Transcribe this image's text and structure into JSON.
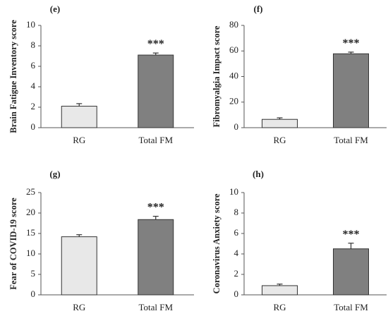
{
  "chart_data": [
    {
      "type": "bar",
      "panel_label": "(e)",
      "ylabel": "Brain Fatigue Inventory score",
      "categories": [
        "RG",
        "Total FM"
      ],
      "values": [
        2.1,
        7.1
      ],
      "errors": [
        0.25,
        0.2
      ],
      "significance": [
        "",
        "***"
      ],
      "ylim": [
        0,
        10
      ],
      "yticks": [
        0,
        2,
        4,
        6,
        8,
        10
      ],
      "bar_colors": [
        "#e8e8e8",
        "#808080"
      ],
      "grid": false
    },
    {
      "type": "bar",
      "panel_label": "(f)",
      "ylabel": "Fibromyalgia Impact score",
      "categories": [
        "RG",
        "Total FM"
      ],
      "values": [
        6.5,
        57.8
      ],
      "errors": [
        1.2,
        1.3
      ],
      "significance": [
        "",
        "***"
      ],
      "ylim": [
        0,
        80
      ],
      "yticks": [
        0,
        20,
        40,
        60,
        80
      ],
      "bar_colors": [
        "#e8e8e8",
        "#808080"
      ],
      "grid": false
    },
    {
      "type": "bar",
      "panel_label": "(g)",
      "ylabel": "Fear of COVID-19 score",
      "categories": [
        "RG",
        "Total FM"
      ],
      "values": [
        14.2,
        18.4
      ],
      "errors": [
        0.5,
        0.8
      ],
      "significance": [
        "",
        "***"
      ],
      "ylim": [
        0,
        25
      ],
      "yticks": [
        0,
        5,
        10,
        15,
        20,
        25
      ],
      "bar_colors": [
        "#e8e8e8",
        "#808080"
      ],
      "grid": false
    },
    {
      "type": "bar",
      "panel_label": "(h)",
      "ylabel": "Coronavirus Anxiety score",
      "categories": [
        "RG",
        "Total FM"
      ],
      "values": [
        0.9,
        4.5
      ],
      "errors": [
        0.15,
        0.55
      ],
      "significance": [
        "",
        "***"
      ],
      "ylim": [
        0,
        10
      ],
      "yticks": [
        0,
        2,
        4,
        6,
        8,
        10
      ],
      "bar_colors": [
        "#e8e8e8",
        "#808080"
      ],
      "grid": false
    }
  ]
}
